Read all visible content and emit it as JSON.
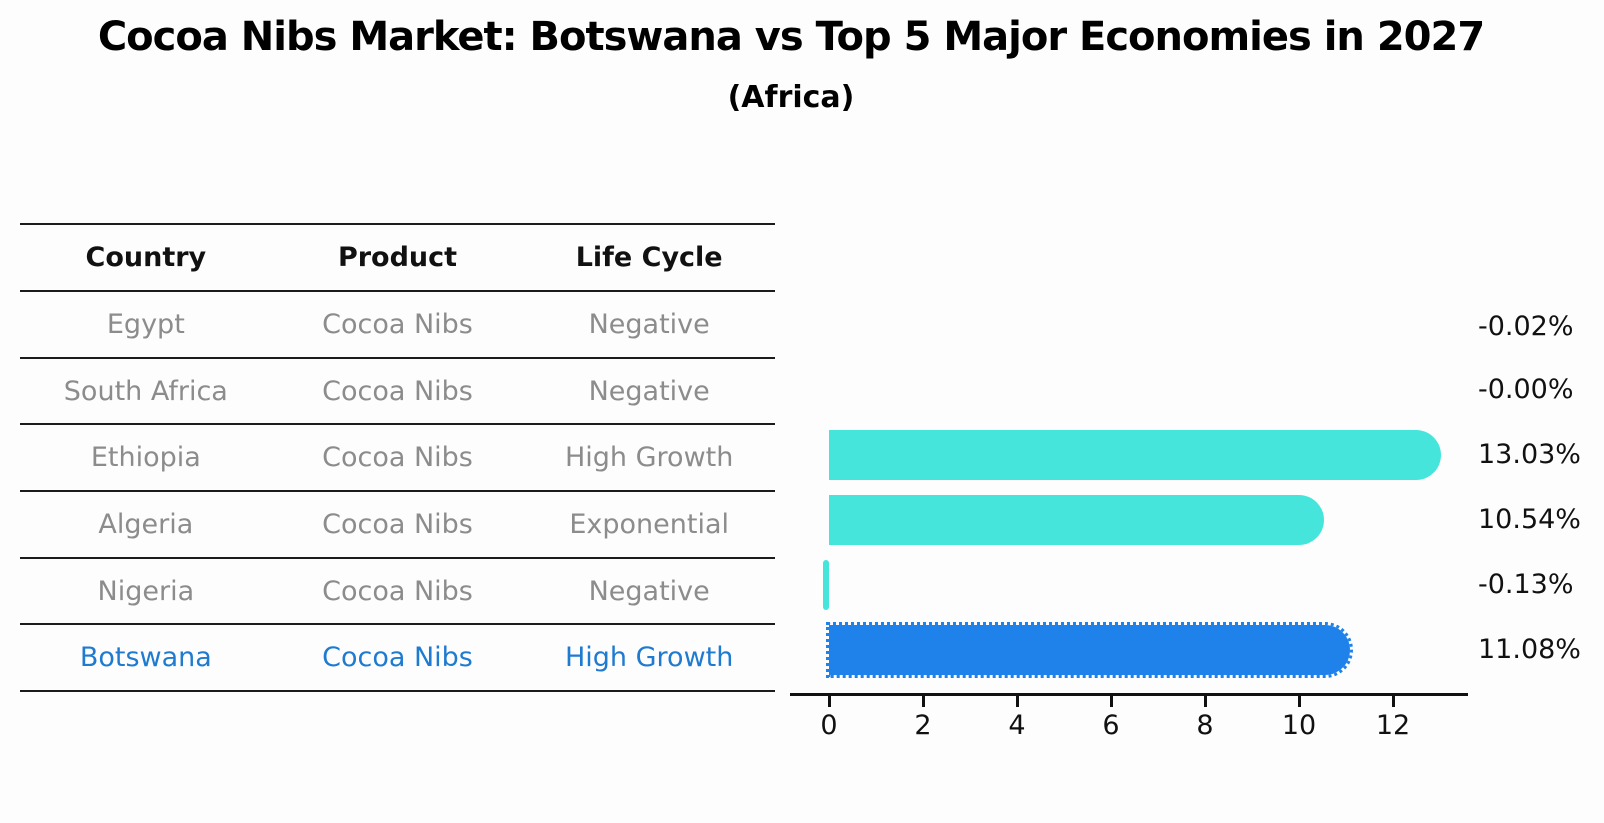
{
  "title": "Cocoa Nibs Market: Botswana vs Top 5 Major Economies in 2027",
  "subtitle": "(Africa)",
  "table": {
    "headers": [
      "Country",
      "Product",
      "Life Cycle"
    ],
    "rows": [
      {
        "country": "Egypt",
        "product": "Cocoa Nibs",
        "life_cycle": "Negative",
        "highlight": false
      },
      {
        "country": "South Africa",
        "product": "Cocoa Nibs",
        "life_cycle": "Negative",
        "highlight": false
      },
      {
        "country": "Ethiopia",
        "product": "Cocoa Nibs",
        "life_cycle": "High Growth",
        "highlight": false
      },
      {
        "country": "Algeria",
        "product": "Cocoa Nibs",
        "life_cycle": "Exponential",
        "highlight": false
      },
      {
        "country": "Nigeria",
        "product": "Cocoa Nibs",
        "life_cycle": "Negative",
        "highlight": false
      },
      {
        "country": "Botswana",
        "product": "Cocoa Nibs",
        "life_cycle": "High Growth",
        "highlight": true
      }
    ]
  },
  "chart_data": {
    "type": "bar",
    "orientation": "horizontal",
    "title": "Cocoa Nibs Market: Botswana vs Top 5 Major Economies in 2027",
    "subtitle": "(Africa)",
    "categories": [
      "Egypt",
      "South Africa",
      "Ethiopia",
      "Algeria",
      "Nigeria",
      "Botswana"
    ],
    "values": [
      -0.02,
      -0.0,
      13.03,
      10.54,
      -0.13,
      11.08
    ],
    "value_labels": [
      "-0.02%",
      "-0.00%",
      "13.03%",
      "10.54%",
      "-0.13%",
      "11.08%"
    ],
    "x_ticks": [
      0,
      2,
      4,
      6,
      8,
      10,
      12
    ],
    "xlim": [
      -0.85,
      13.6
    ],
    "grid": false,
    "legend": "none",
    "bar_colors": [
      "#46e5dc",
      "#46e5dc",
      "#46e5dc",
      "#46e5dc",
      "#46e5dc",
      "#1f82eb"
    ],
    "highlight_index": 5
  },
  "colors": {
    "bar_default": "#46e5dc",
    "bar_highlight": "#1f82eb",
    "highlight_text": "#1f7bd0",
    "row_text": "#8c8c8c",
    "header_text": "#111111",
    "axis": "#111111"
  }
}
